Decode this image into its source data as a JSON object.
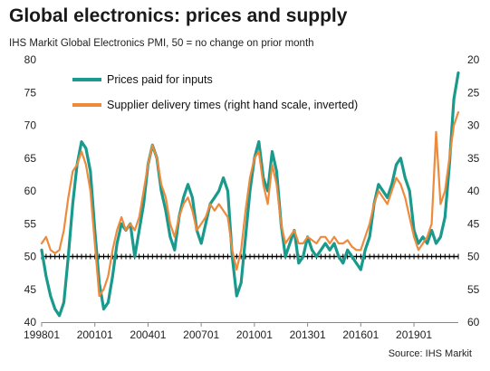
{
  "title": "Global electronics: prices and supply",
  "subtitle": "IHS Markit Global  Electronics PMI, 50 = no change on prior month",
  "source": "Source: IHS Markit",
  "colors": {
    "prices": "#1a9a8c",
    "delivery": "#ee8a3c",
    "reference": "#000000"
  },
  "chart_data": {
    "type": "line",
    "left_axis": {
      "min": 40,
      "max": 80,
      "ticks": [
        40,
        45,
        50,
        55,
        60,
        65,
        70,
        75,
        80
      ]
    },
    "right_axis": {
      "min": 20,
      "max": 60,
      "inverted": true,
      "ticks": [
        20,
        25,
        30,
        35,
        40,
        45,
        50,
        55,
        60
      ]
    },
    "x_ticks": [
      "199801",
      "200101",
      "200401",
      "200701",
      "201001",
      "201301",
      "201601",
      "201901"
    ],
    "x_range": [
      "1998-01",
      "2021-07"
    ],
    "reference_line": 50,
    "legend_position": "top-left",
    "series": [
      {
        "name": "Prices paid for inputs",
        "axis": "left",
        "points": [
          [
            "1998-01",
            51
          ],
          [
            "1998-04",
            47
          ],
          [
            "1998-07",
            44
          ],
          [
            "1998-10",
            42
          ],
          [
            "1999-01",
            41
          ],
          [
            "1999-04",
            43
          ],
          [
            "1999-07",
            50
          ],
          [
            "1999-10",
            58
          ],
          [
            "2000-01",
            64
          ],
          [
            "2000-04",
            67.5
          ],
          [
            "2000-07",
            66.5
          ],
          [
            "2000-10",
            63
          ],
          [
            "2001-01",
            54
          ],
          [
            "2001-04",
            46
          ],
          [
            "2001-07",
            42
          ],
          [
            "2001-10",
            43
          ],
          [
            "2002-01",
            47
          ],
          [
            "2002-04",
            52
          ],
          [
            "2002-07",
            55
          ],
          [
            "2002-10",
            54
          ],
          [
            "2003-01",
            55
          ],
          [
            "2003-04",
            50
          ],
          [
            "2003-07",
            54
          ],
          [
            "2003-10",
            58
          ],
          [
            "2004-01",
            64
          ],
          [
            "2004-04",
            67
          ],
          [
            "2004-07",
            65
          ],
          [
            "2004-10",
            60
          ],
          [
            "2005-01",
            57
          ],
          [
            "2005-04",
            53
          ],
          [
            "2005-07",
            51
          ],
          [
            "2005-10",
            56
          ],
          [
            "2006-01",
            59
          ],
          [
            "2006-04",
            61
          ],
          [
            "2006-07",
            59
          ],
          [
            "2006-10",
            54
          ],
          [
            "2007-01",
            52
          ],
          [
            "2007-04",
            55
          ],
          [
            "2007-07",
            58
          ],
          [
            "2007-10",
            59
          ],
          [
            "2008-01",
            60
          ],
          [
            "2008-04",
            62
          ],
          [
            "2008-07",
            60
          ],
          [
            "2008-10",
            50
          ],
          [
            "2009-01",
            44
          ],
          [
            "2009-04",
            46
          ],
          [
            "2009-07",
            53
          ],
          [
            "2009-10",
            60
          ],
          [
            "2010-01",
            65
          ],
          [
            "2010-04",
            67.5
          ],
          [
            "2010-07",
            62
          ],
          [
            "2010-10",
            60
          ],
          [
            "2011-01",
            66
          ],
          [
            "2011-04",
            63
          ],
          [
            "2011-07",
            55
          ],
          [
            "2011-10",
            50
          ],
          [
            "2012-01",
            52
          ],
          [
            "2012-04",
            54
          ],
          [
            "2012-07",
            49
          ],
          [
            "2012-10",
            50
          ],
          [
            "2013-01",
            53
          ],
          [
            "2013-04",
            51
          ],
          [
            "2013-07",
            50
          ],
          [
            "2013-10",
            51
          ],
          [
            "2014-01",
            52
          ],
          [
            "2014-04",
            51
          ],
          [
            "2014-07",
            52
          ],
          [
            "2014-10",
            50
          ],
          [
            "2015-01",
            49
          ],
          [
            "2015-04",
            51
          ],
          [
            "2015-07",
            50
          ],
          [
            "2015-10",
            49
          ],
          [
            "2016-01",
            48
          ],
          [
            "2016-04",
            51
          ],
          [
            "2016-07",
            53
          ],
          [
            "2016-10",
            58
          ],
          [
            "2017-01",
            61
          ],
          [
            "2017-04",
            60
          ],
          [
            "2017-07",
            59
          ],
          [
            "2017-10",
            61
          ],
          [
            "2018-01",
            64
          ],
          [
            "2018-04",
            65
          ],
          [
            "2018-07",
            62
          ],
          [
            "2018-10",
            60
          ],
          [
            "2019-01",
            54
          ],
          [
            "2019-04",
            52
          ],
          [
            "2019-07",
            53
          ],
          [
            "2019-10",
            52
          ],
          [
            "2020-01",
            54
          ],
          [
            "2020-04",
            52
          ],
          [
            "2020-07",
            53
          ],
          [
            "2020-10",
            56
          ],
          [
            "2021-01",
            64
          ],
          [
            "2021-04",
            74
          ],
          [
            "2021-07",
            78
          ]
        ]
      },
      {
        "name": "Supplier delivery times (right hand scale, inverted)",
        "axis": "right",
        "points": [
          [
            "1998-01",
            48
          ],
          [
            "1998-04",
            47
          ],
          [
            "1998-07",
            49
          ],
          [
            "1998-10",
            49.5
          ],
          [
            "1999-01",
            49
          ],
          [
            "1999-04",
            46
          ],
          [
            "1999-07",
            41
          ],
          [
            "1999-10",
            37
          ],
          [
            "2000-01",
            36
          ],
          [
            "2000-04",
            34
          ],
          [
            "2000-07",
            36
          ],
          [
            "2000-10",
            40
          ],
          [
            "2001-01",
            48
          ],
          [
            "2001-04",
            56
          ],
          [
            "2001-07",
            55
          ],
          [
            "2001-10",
            53
          ],
          [
            "2002-01",
            49
          ],
          [
            "2002-04",
            46
          ],
          [
            "2002-07",
            44
          ],
          [
            "2002-10",
            46
          ],
          [
            "2003-01",
            45
          ],
          [
            "2003-04",
            46
          ],
          [
            "2003-07",
            44
          ],
          [
            "2003-10",
            40
          ],
          [
            "2004-01",
            36
          ],
          [
            "2004-04",
            33
          ],
          [
            "2004-07",
            35
          ],
          [
            "2004-10",
            39
          ],
          [
            "2005-01",
            41
          ],
          [
            "2005-04",
            45
          ],
          [
            "2005-07",
            47
          ],
          [
            "2005-10",
            44
          ],
          [
            "2006-01",
            42
          ],
          [
            "2006-04",
            41
          ],
          [
            "2006-07",
            43
          ],
          [
            "2006-10",
            46
          ],
          [
            "2007-01",
            45
          ],
          [
            "2007-04",
            44
          ],
          [
            "2007-07",
            42
          ],
          [
            "2007-10",
            43
          ],
          [
            "2008-01",
            42
          ],
          [
            "2008-04",
            43
          ],
          [
            "2008-07",
            44
          ],
          [
            "2008-10",
            49
          ],
          [
            "2009-01",
            52
          ],
          [
            "2009-04",
            49
          ],
          [
            "2009-07",
            43
          ],
          [
            "2009-10",
            38
          ],
          [
            "2010-01",
            35
          ],
          [
            "2010-04",
            34
          ],
          [
            "2010-07",
            39
          ],
          [
            "2010-10",
            42
          ],
          [
            "2011-01",
            36
          ],
          [
            "2011-04",
            39
          ],
          [
            "2011-07",
            45
          ],
          [
            "2011-10",
            48
          ],
          [
            "2012-01",
            47
          ],
          [
            "2012-04",
            46
          ],
          [
            "2012-07",
            48
          ],
          [
            "2012-10",
            48
          ],
          [
            "2013-01",
            47
          ],
          [
            "2013-04",
            47.5
          ],
          [
            "2013-07",
            48
          ],
          [
            "2013-10",
            47
          ],
          [
            "2014-01",
            47
          ],
          [
            "2014-04",
            48
          ],
          [
            "2014-07",
            47
          ],
          [
            "2014-10",
            48
          ],
          [
            "2015-01",
            48
          ],
          [
            "2015-04",
            47.5
          ],
          [
            "2015-07",
            48.5
          ],
          [
            "2015-10",
            49
          ],
          [
            "2016-01",
            49
          ],
          [
            "2016-04",
            47
          ],
          [
            "2016-07",
            45
          ],
          [
            "2016-10",
            42
          ],
          [
            "2017-01",
            40
          ],
          [
            "2017-04",
            41
          ],
          [
            "2017-07",
            42
          ],
          [
            "2017-10",
            40
          ],
          [
            "2018-01",
            38
          ],
          [
            "2018-04",
            39
          ],
          [
            "2018-07",
            41
          ],
          [
            "2018-10",
            44
          ],
          [
            "2019-01",
            47
          ],
          [
            "2019-04",
            49
          ],
          [
            "2019-07",
            48
          ],
          [
            "2019-10",
            47
          ],
          [
            "2020-01",
            45
          ],
          [
            "2020-04",
            31
          ],
          [
            "2020-07",
            42
          ],
          [
            "2020-10",
            40
          ],
          [
            "2021-01",
            35
          ],
          [
            "2021-04",
            30
          ],
          [
            "2021-07",
            28
          ]
        ]
      }
    ]
  }
}
